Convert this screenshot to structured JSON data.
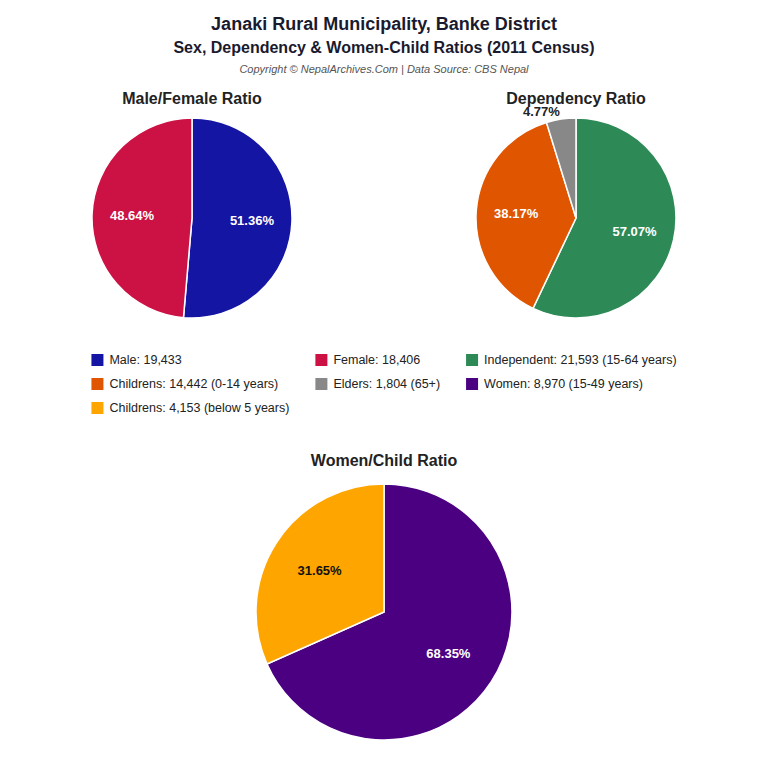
{
  "title": "Janaki Rural Municipality, Banke District",
  "subtitle": "Sex, Dependency & Women-Child Ratios (2011 Census)",
  "annotations": [
    "Copyright © NepalArchives.Com | Data Source: CBS Nepal"
  ],
  "chart_data": [
    {
      "type": "pie",
      "title": "Male/Female Ratio",
      "categories": [
        "Male: 19,433",
        "Female: 18,406"
      ],
      "values": [
        51.36,
        48.64
      ],
      "value_labels": [
        "51.36%",
        "48.64%"
      ],
      "colors": [
        "#1515a3",
        "#cc1144"
      ],
      "data_labels": true,
      "legend": "bottom"
    },
    {
      "type": "pie",
      "title": "Dependency Ratio",
      "categories": [
        "Independent: 21,593 (15-64 years)",
        "Childrens: 14,442 (0-14 years)",
        "Elders: 1,804 (65+)"
      ],
      "values": [
        57.07,
        38.17,
        4.77
      ],
      "value_labels": [
        "57.07%",
        "38.17%",
        "4.77%"
      ],
      "colors": [
        "#2d8a57",
        "#e05500",
        "#888888"
      ],
      "data_labels": true,
      "legend": "bottom"
    },
    {
      "type": "pie",
      "title": "Women/Child Ratio",
      "categories": [
        "Women: 8,970 (15-49 years)",
        "Childrens: 4,153 (below 5 years)"
      ],
      "values": [
        68.35,
        31.65
      ],
      "value_labels": [
        "68.35%",
        "31.65%"
      ],
      "colors": [
        "#4b0082",
        "#ffa500"
      ],
      "data_labels": true,
      "legend": "top"
    }
  ]
}
